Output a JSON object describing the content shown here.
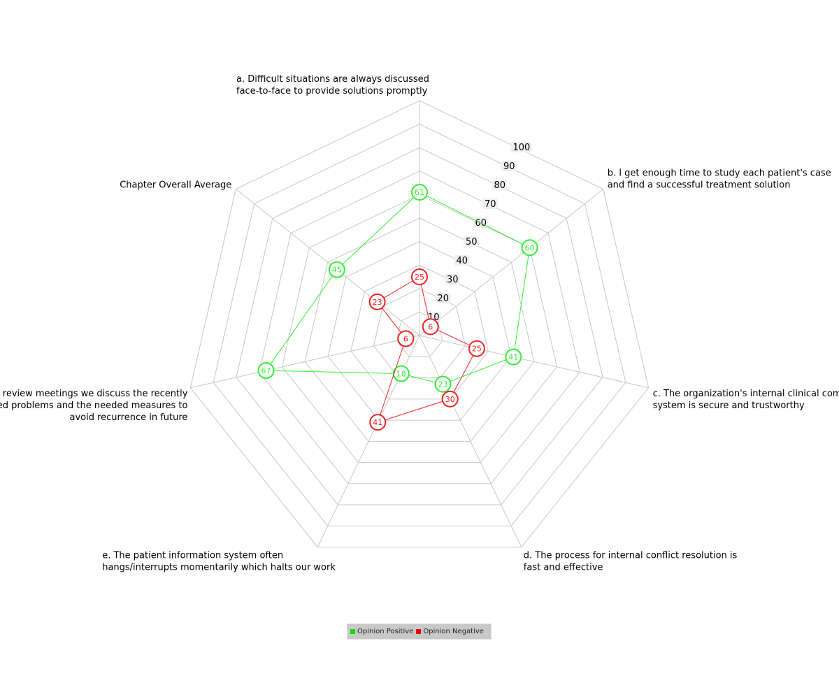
{
  "chart_data": {
    "type": "radar",
    "axes": [
      [
        "a. Difficult situations are always discussed",
        "face-to-face to provide solutions promptly"
      ],
      [
        "b. I get enough time to study each patient's case",
        "and find a successful treatment solution"
      ],
      [
        "c. The organization's internal clinical complaint",
        "system is secure and trustworthy"
      ],
      [
        "d. The process for internal conflict resolution is",
        "fast and effective"
      ],
      [
        "e. The patient information system often",
        "hangs/interrupts momentarily which halts our work"
      ],
      [
        "f. In review meetings we discuss the recently",
        "discovered problems and the needed measures to",
        "avoid recurrence in future"
      ],
      [
        "Chapter Overall Average"
      ]
    ],
    "r_ticks": [
      10,
      20,
      30,
      40,
      50,
      60,
      70,
      80,
      90,
      100
    ],
    "r_range": [
      0,
      100
    ],
    "series": [
      {
        "name": "Opinion Positive",
        "color": "#33ee33",
        "values": [
          61,
          60,
          41,
          23,
          18,
          67,
          45
        ]
      },
      {
        "name": "Opinion Negative",
        "color": "#ee2222",
        "values": [
          25,
          6,
          25,
          30,
          41,
          6,
          23
        ]
      }
    ],
    "legend_position": "bottom-center",
    "grid": true
  }
}
